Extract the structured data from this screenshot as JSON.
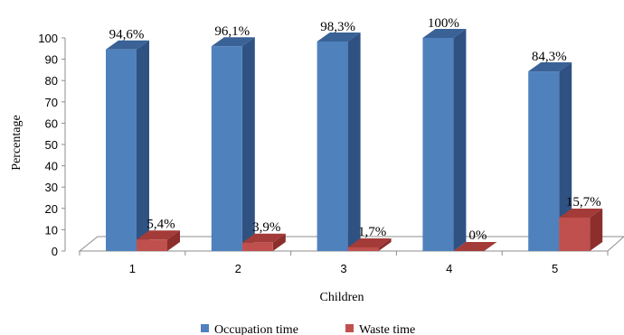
{
  "chart_data": {
    "type": "bar",
    "style": "3d-clustered-column",
    "categories": [
      "1",
      "2",
      "3",
      "4",
      "5"
    ],
    "series": [
      {
        "name": "Occupation time",
        "values": [
          94.6,
          96.1,
          98.3,
          100,
          84.3
        ],
        "labels": [
          "94,6%",
          "96,1%",
          "98,3%",
          "100%",
          "84,3%"
        ],
        "color": "#4F81BD",
        "side_color": "#2F5283",
        "top_color": "#3A6296"
      },
      {
        "name": "Waste time",
        "values": [
          5.4,
          3.9,
          1.7,
          0,
          15.7
        ],
        "labels": [
          "5,4%",
          "3,9%",
          "1,7%",
          "0%",
          "15,7%"
        ],
        "color": "#C0504D",
        "side_color": "#8B2E2C",
        "top_color": "#A33B39"
      }
    ],
    "xlabel": "Children",
    "ylabel": "Percentage",
    "ylim": [
      0,
      100
    ],
    "yticks": [
      "0",
      "10",
      "20",
      "30",
      "40",
      "50",
      "60",
      "70",
      "80",
      "90",
      "100"
    ],
    "grid": false,
    "legend_position": "bottom"
  }
}
